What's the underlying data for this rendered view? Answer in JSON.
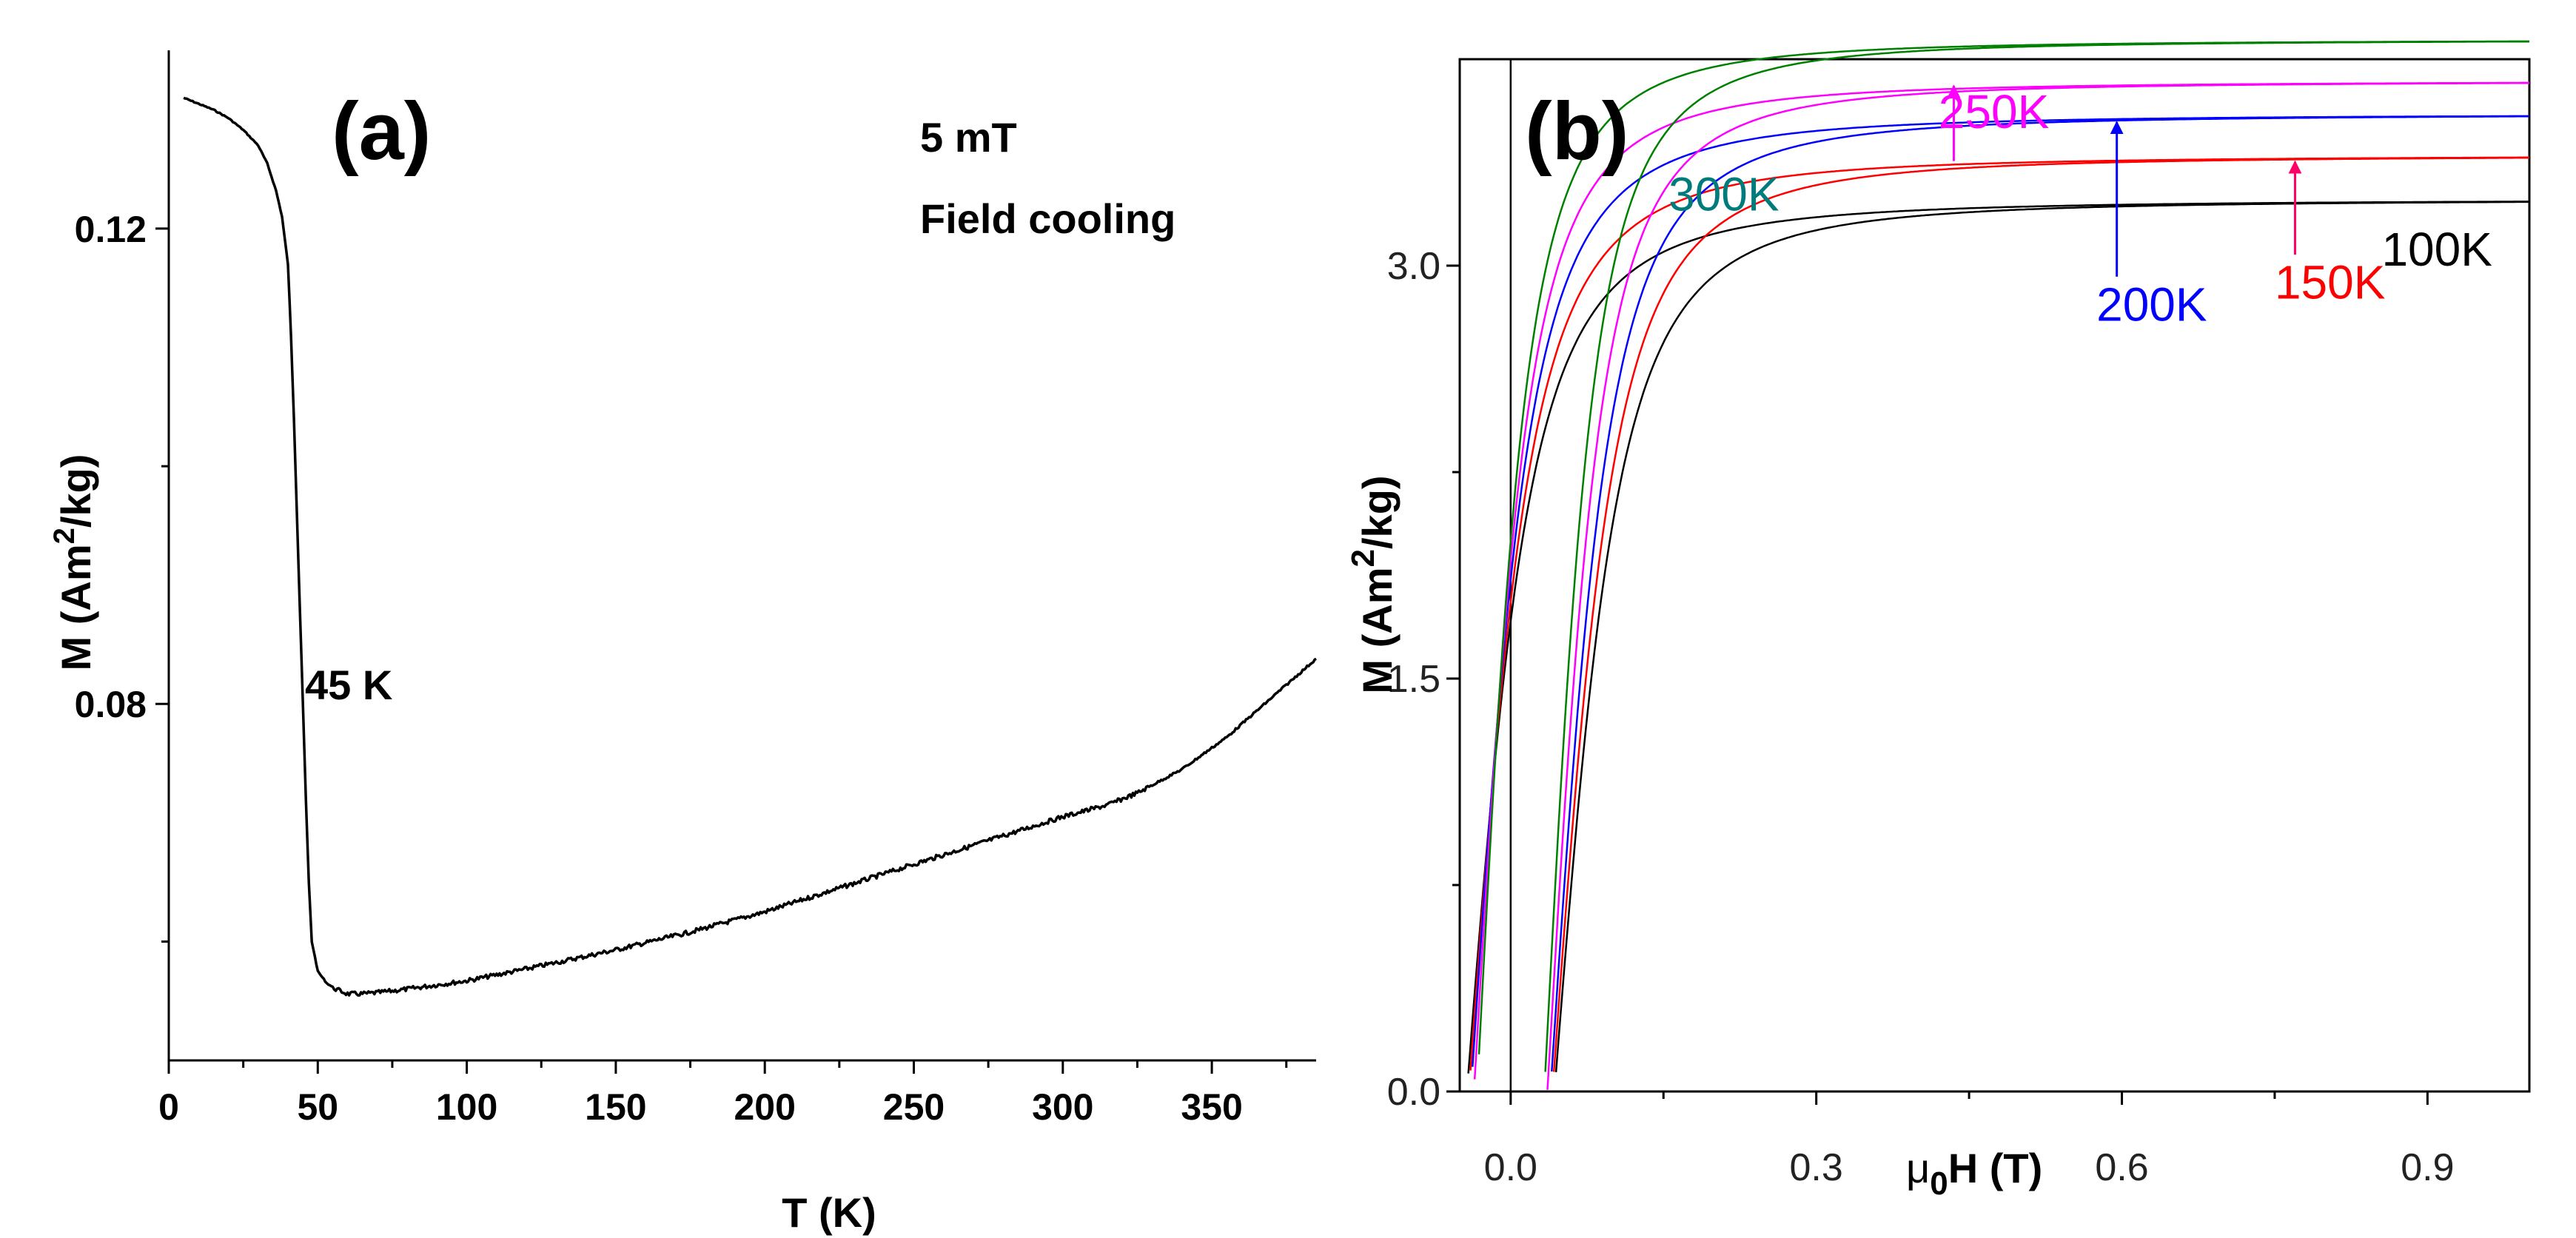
{
  "chart_data": [
    {
      "panel": "a",
      "type": "line",
      "panel_label": "(a)",
      "annotations": {
        "field": "5 mT",
        "mode": "Field cooling",
        "transition": "45 K"
      },
      "xlabel": "T (K)",
      "ylabel": {
        "prefix": "M (Am",
        "sup": "2",
        "suffix": "/kg)"
      },
      "xlim": [
        0,
        385
      ],
      "ylim": [
        0.05,
        0.135
      ],
      "xticks": [
        0,
        50,
        100,
        150,
        200,
        250,
        300,
        350
      ],
      "yticks": [
        0.08,
        0.12
      ],
      "ytick_labels": [
        "0.08",
        "0.12"
      ],
      "series": [
        {
          "name": "FC 5 mT",
          "color": "#000000",
          "x": [
            5,
            10,
            15,
            20,
            25,
            30,
            33,
            36,
            38,
            40,
            41,
            42,
            43,
            44,
            45,
            46,
            47,
            48,
            50,
            53,
            56,
            60,
            65,
            70,
            80,
            100,
            120,
            150,
            175,
            200,
            225,
            250,
            275,
            300,
            315,
            325,
            340,
            355,
            370,
            385
          ],
          "y": [
            0.131,
            0.1305,
            0.13,
            0.1293,
            0.1283,
            0.127,
            0.1255,
            0.1232,
            0.121,
            0.117,
            0.111,
            0.104,
            0.096,
            0.088,
            0.08,
            0.072,
            0.065,
            0.06,
            0.0575,
            0.0565,
            0.056,
            0.0556,
            0.0556,
            0.0557,
            0.056,
            0.0567,
            0.0577,
            0.0593,
            0.0608,
            0.0625,
            0.0645,
            0.0665,
            0.0685,
            0.0705,
            0.0715,
            0.0725,
            0.0745,
            0.0772,
            0.0805,
            0.0838
          ]
        }
      ]
    },
    {
      "panel": "b",
      "type": "line",
      "panel_label": "(b)",
      "xlabel": {
        "mu": "μ",
        "sub": "0",
        "rest": "H (T)"
      },
      "ylabel": {
        "prefix": "M (Am",
        "sup": "2",
        "suffix": "/kg)"
      },
      "xlim": [
        -0.05,
        1.0
      ],
      "ylim": [
        0.0,
        3.75
      ],
      "xticks": [
        0.0,
        0.3,
        0.6,
        0.9
      ],
      "xtick_labels": [
        "0.0",
        "0.3",
        "0.6",
        "0.9"
      ],
      "yticks": [
        0.0,
        1.5,
        3.0
      ],
      "ytick_labels": [
        "0.0",
        "1.5",
        "3.0"
      ],
      "series": [
        {
          "name": "100K",
          "color": "#000000",
          "Ms": 3.24,
          "Mr": 1.71,
          "Hc": 0.043,
          "label_x": 0.855,
          "label_y": 3.0
        },
        {
          "name": "150K",
          "color": "#ff0000",
          "Ms": 3.4,
          "Mr": 1.78,
          "Hc": 0.041,
          "label_x": 0.75,
          "label_y": 2.88
        },
        {
          "name": "200K",
          "color": "#0000ff",
          "Ms": 3.55,
          "Mr": 1.86,
          "Hc": 0.039,
          "label_x": 0.575,
          "label_y": 2.8
        },
        {
          "name": "250K",
          "color": "#ff00ff",
          "Ms": 3.67,
          "Mr": 1.93,
          "Hc": 0.036,
          "label_x": 0.42,
          "label_y": 3.5
        },
        {
          "name": "300K",
          "color": "#008000",
          "Ms": 3.82,
          "Mr": 2.0,
          "Hc": 0.033,
          "label_x": 0.155,
          "label_y": 3.2,
          "label_color": "#007b7b"
        }
      ],
      "arrows": [
        {
          "target": "250K",
          "color": "#ff00ff"
        },
        {
          "target": "200K",
          "color": "#0000ff"
        },
        {
          "target": "150K",
          "color": "#ff0066"
        }
      ]
    }
  ]
}
